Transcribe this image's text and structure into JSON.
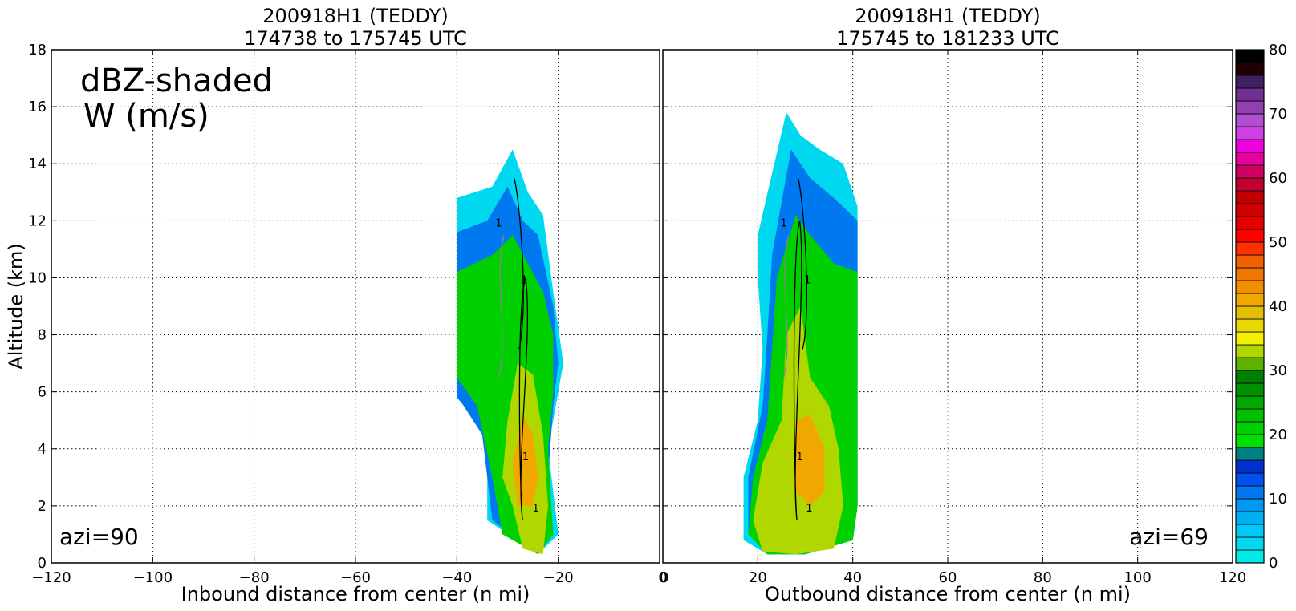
{
  "chart_data": [
    {
      "type": "heatmap",
      "panel": "left",
      "title_line1": "200918H1 (TEDDY)",
      "title_line2": "174738 to 175745 UTC",
      "xlabel": "Inbound distance from center (n mi)",
      "ylabel": "Altitude (km)",
      "xlim": [
        -120,
        0
      ],
      "ylim": [
        0,
        18
      ],
      "xticks": [
        -120,
        -100,
        -80,
        -60,
        -40,
        -20,
        0
      ],
      "yticks": [
        0,
        2,
        4,
        6,
        8,
        10,
        12,
        14,
        16,
        18
      ],
      "grid": true,
      "annotation_line1": "dBZ-shaded",
      "annotation_line2": "W (m/s)",
      "azimuth_label": "azi=90",
      "contour_label": "1",
      "dbz_regions": [
        {
          "dbz": 2,
          "poly": [
            [
              -40,
              12.8
            ],
            [
              -33,
              13.2
            ],
            [
              -29,
              14.5
            ],
            [
              -26,
              13.0
            ],
            [
              -23,
              12.2
            ],
            [
              -21,
              9.5
            ],
            [
              -19,
              7.0
            ],
            [
              -20,
              6.0
            ],
            [
              -22,
              4.0
            ],
            [
              -20,
              1.0
            ],
            [
              -24,
              0.3
            ],
            [
              -34,
              1.5
            ],
            [
              -34,
              4.0
            ],
            [
              -36,
              5.0
            ],
            [
              -40,
              5.8
            ]
          ]
        },
        {
          "dbz": 10,
          "poly": [
            [
              -40,
              11.6
            ],
            [
              -34,
              12.0
            ],
            [
              -30,
              13.2
            ],
            [
              -27,
              12.0
            ],
            [
              -24,
              11.5
            ],
            [
              -21,
              9.0
            ],
            [
              -20,
              7.0
            ],
            [
              -21,
              5.5
            ],
            [
              -22,
              3.0
            ],
            [
              -21,
              1.0
            ],
            [
              -24,
              0.3
            ],
            [
              -33,
              1.5
            ],
            [
              -35,
              4.5
            ],
            [
              -39,
              5.6
            ],
            [
              -40,
              5.8
            ]
          ]
        },
        {
          "dbz": 20,
          "poly": [
            [
              -40,
              10.2
            ],
            [
              -33,
              10.8
            ],
            [
              -29,
              11.5
            ],
            [
              -26,
              10.5
            ],
            [
              -23,
              9.5
            ],
            [
              -21,
              8.0
            ],
            [
              -21,
              6.0
            ],
            [
              -22,
              4.0
            ],
            [
              -21,
              1.0
            ],
            [
              -24,
              0.3
            ],
            [
              -31,
              1.0
            ],
            [
              -33,
              3.0
            ],
            [
              -36,
              5.5
            ],
            [
              -40,
              6.5
            ]
          ]
        },
        {
          "dbz": 32,
          "poly": [
            [
              -28,
              7.0
            ],
            [
              -25,
              6.6
            ],
            [
              -23,
              4.5
            ],
            [
              -22,
              2.0
            ],
            [
              -23,
              0.3
            ],
            [
              -27,
              0.5
            ],
            [
              -29,
              2.0
            ],
            [
              -31,
              3.0
            ],
            [
              -30,
              5.0
            ]
          ]
        },
        {
          "dbz": 40,
          "poly": [
            [
              -27,
              5.2
            ],
            [
              -25,
              4.5
            ],
            [
              -24,
              3.0
            ],
            [
              -25,
              2.0
            ],
            [
              -28,
              2.0
            ],
            [
              -29,
              3.5
            ]
          ]
        }
      ]
    },
    {
      "type": "heatmap",
      "panel": "right",
      "title_line1": "200918H1 (TEDDY)",
      "title_line2": "175745 to 181233 UTC",
      "xlabel": "Outbound distance from center (n mi)",
      "xlim": [
        0,
        120
      ],
      "ylim": [
        0,
        18
      ],
      "xticks": [
        0,
        20,
        40,
        60,
        80,
        100,
        120
      ],
      "yticks": [
        0,
        2,
        4,
        6,
        8,
        10,
        12,
        14,
        16,
        18
      ],
      "grid": true,
      "azimuth_label": "azi=69",
      "contour_label": "1",
      "dbz_regions": [
        {
          "dbz": 2,
          "poly": [
            [
              20,
              11.5
            ],
            [
              26,
              15.8
            ],
            [
              29,
              15.0
            ],
            [
              33,
              14.5
            ],
            [
              38,
              14.0
            ],
            [
              41,
              12.5
            ],
            [
              41,
              2.0
            ],
            [
              40,
              0.8
            ],
            [
              30,
              0.3
            ],
            [
              22,
              0.3
            ],
            [
              17,
              0.8
            ],
            [
              17,
              3.0
            ],
            [
              20,
              5.0
            ],
            [
              21,
              7.5
            ],
            [
              20,
              10.0
            ]
          ]
        },
        {
          "dbz": 10,
          "poly": [
            [
              23,
              10.8
            ],
            [
              27,
              14.5
            ],
            [
              31,
              13.5
            ],
            [
              36,
              12.8
            ],
            [
              41,
              12.0
            ],
            [
              41,
              2.0
            ],
            [
              40,
              0.8
            ],
            [
              30,
              0.3
            ],
            [
              22,
              0.3
            ],
            [
              18,
              1.0
            ],
            [
              18,
              3.0
            ],
            [
              21,
              5.5
            ],
            [
              22,
              8.0
            ]
          ]
        },
        {
          "dbz": 20,
          "poly": [
            [
              24,
              10.0
            ],
            [
              28,
              12.2
            ],
            [
              31,
              11.5
            ],
            [
              36,
              10.5
            ],
            [
              41,
              10.2
            ],
            [
              41,
              2.0
            ],
            [
              40,
              0.8
            ],
            [
              30,
              0.3
            ],
            [
              22,
              0.3
            ],
            [
              18,
              1.0
            ],
            [
              19,
              3.0
            ],
            [
              22,
              5.0
            ],
            [
              23,
              7.5
            ]
          ]
        },
        {
          "dbz": 32,
          "poly": [
            [
              26,
              8.0
            ],
            [
              29,
              9.0
            ],
            [
              31,
              6.5
            ],
            [
              35,
              5.5
            ],
            [
              37,
              4.0
            ],
            [
              38,
              2.0
            ],
            [
              36,
              0.5
            ],
            [
              28,
              0.3
            ],
            [
              21,
              0.4
            ],
            [
              19,
              1.5
            ],
            [
              21,
              3.5
            ],
            [
              25,
              5.0
            ]
          ]
        },
        {
          "dbz": 40,
          "poly": [
            [
              28,
              5.0
            ],
            [
              31,
              5.2
            ],
            [
              34,
              4.0
            ],
            [
              34,
              2.5
            ],
            [
              31,
              2.0
            ],
            [
              28,
              2.5
            ]
          ]
        }
      ]
    }
  ],
  "colorbar": {
    "min": 0,
    "max": 80,
    "step": 2,
    "tick_labels": [
      "0",
      "10",
      "20",
      "30",
      "40",
      "50",
      "60",
      "70",
      "80"
    ],
    "colors": [
      "#00e8e8",
      "#00d8f0",
      "#00c8f8",
      "#00b0f0",
      "#0098f0",
      "#0078f0",
      "#0050f0",
      "#0030d0",
      "#008080",
      "#00e000",
      "#00d000",
      "#00c000",
      "#00a800",
      "#009000",
      "#008000",
      "#60b000",
      "#b0d800",
      "#f0f000",
      "#e8d800",
      "#e0c000",
      "#f0a800",
      "#f09000",
      "#f07800",
      "#f06000",
      "#ff3000",
      "#ff0000",
      "#e80000",
      "#d00000",
      "#c00000",
      "#c00030",
      "#d00060",
      "#e800a0",
      "#f000e0",
      "#d040e0",
      "#b050d0",
      "#9040b0",
      "#703090",
      "#402060",
      "#200000",
      "#000000"
    ]
  }
}
